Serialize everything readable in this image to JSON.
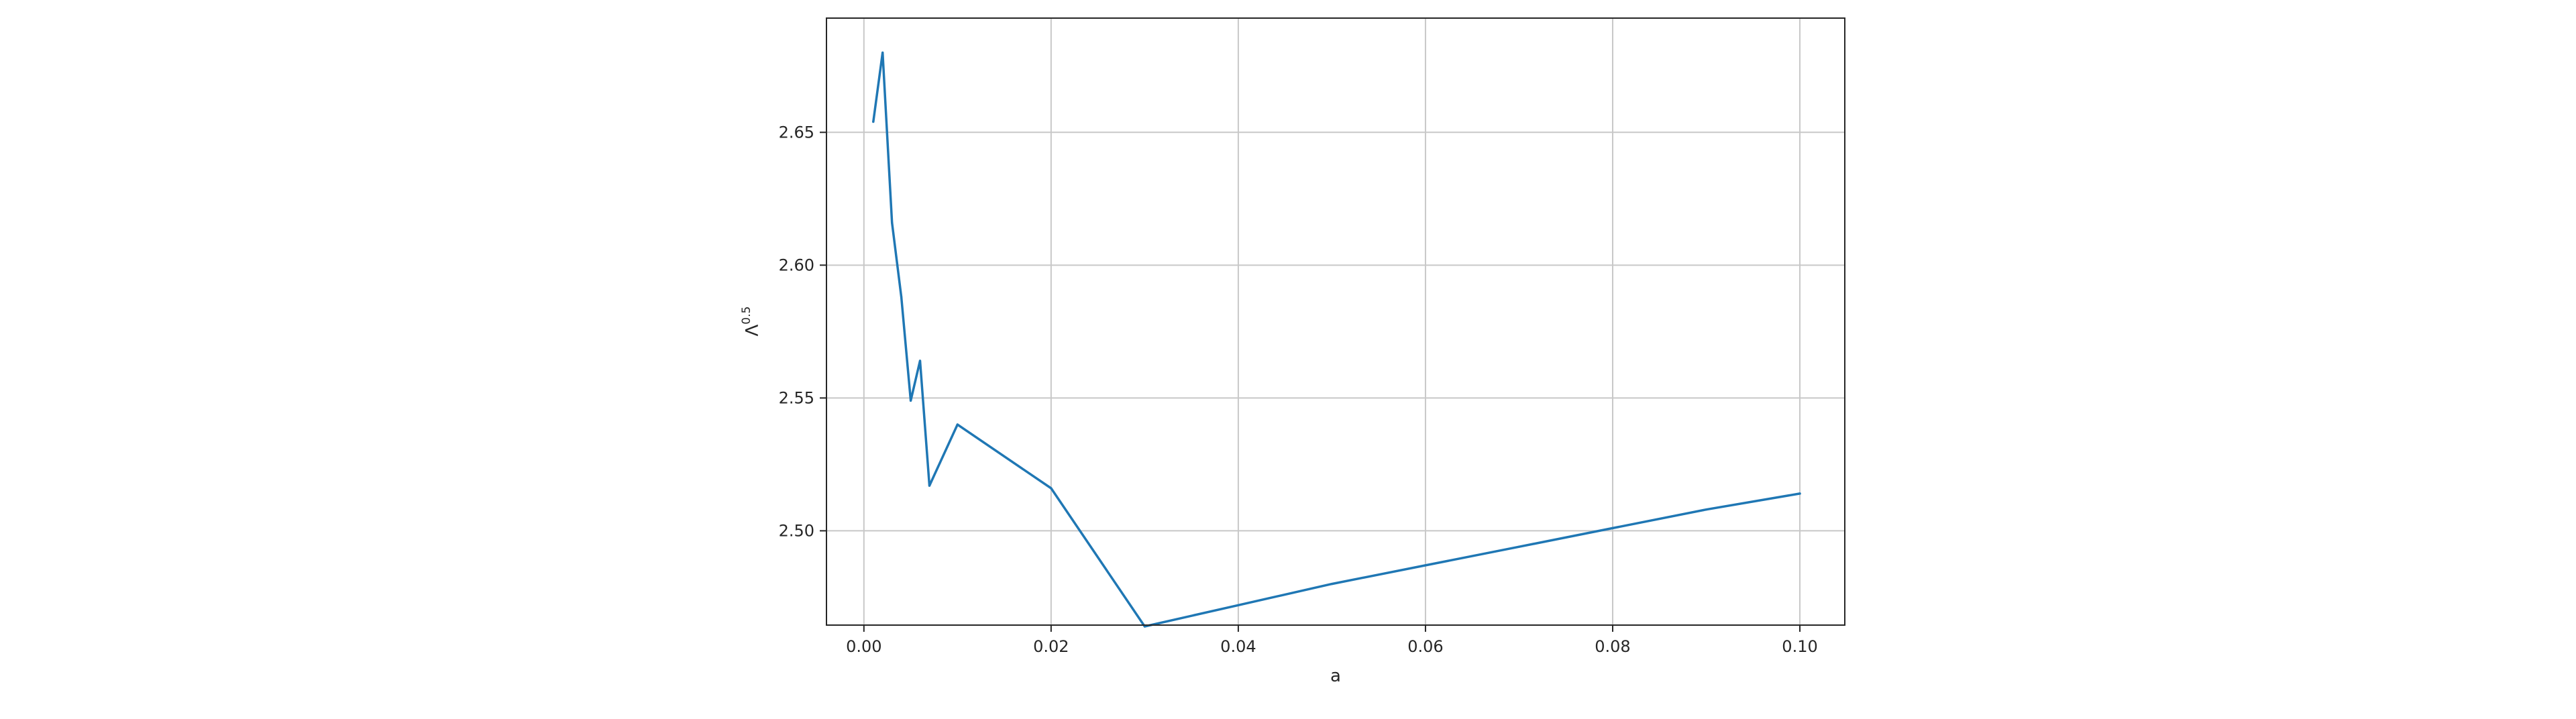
{
  "chart_data": {
    "type": "line",
    "title": "",
    "xlabel": "a",
    "ylabel": {
      "base": "Λ",
      "superscript": "0.5"
    },
    "xlim": [
      -0.004,
      0.1048
    ],
    "ylim": [
      2.4645,
      2.693
    ],
    "xticks": [
      0.0,
      0.02,
      0.04,
      0.06,
      0.08,
      0.1
    ],
    "xtick_labels": [
      "0.00",
      "0.02",
      "0.04",
      "0.06",
      "0.08",
      "0.10"
    ],
    "yticks": [
      2.5,
      2.55,
      2.6,
      2.65
    ],
    "ytick_labels": [
      "2.50",
      "2.55",
      "2.60",
      "2.65"
    ],
    "grid": true,
    "legend": "none",
    "series": [
      {
        "color": "#1f77b4",
        "x": [
          0.001,
          0.002,
          0.003,
          0.004,
          0.005,
          0.006,
          0.007,
          0.01,
          0.02,
          0.03,
          0.04,
          0.05,
          0.06,
          0.07,
          0.08,
          0.09,
          0.1
        ],
        "y": [
          2.654,
          2.68,
          2.616,
          2.588,
          2.549,
          2.564,
          2.517,
          2.54,
          2.516,
          2.464,
          2.472,
          2.48,
          2.487,
          2.494,
          2.501,
          2.508,
          2.514
        ]
      }
    ]
  }
}
